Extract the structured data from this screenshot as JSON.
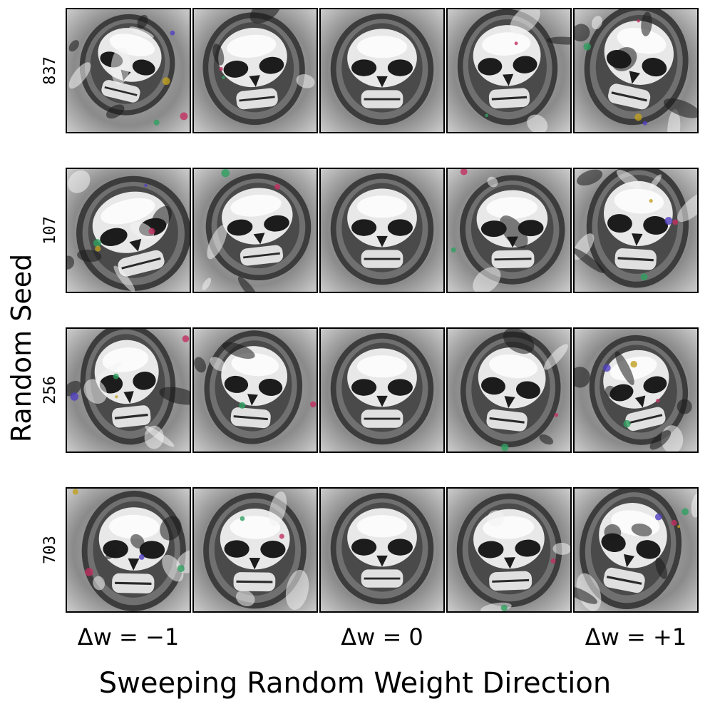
{
  "figure": {
    "ylabel": "Random Seed",
    "xlabel": "Sweeping Random Weight Direction",
    "column_ticks": [
      "Δw = −1",
      "Δw = 0",
      "Δw = +1"
    ],
    "rows": [
      {
        "seed": "837"
      },
      {
        "seed": "107"
      },
      {
        "seed": "256"
      },
      {
        "seed": "703"
      }
    ],
    "columns_per_row": 5,
    "tile_subject": "skull-image",
    "colors": {
      "background": "#ffffff",
      "frame": "#000000"
    }
  }
}
